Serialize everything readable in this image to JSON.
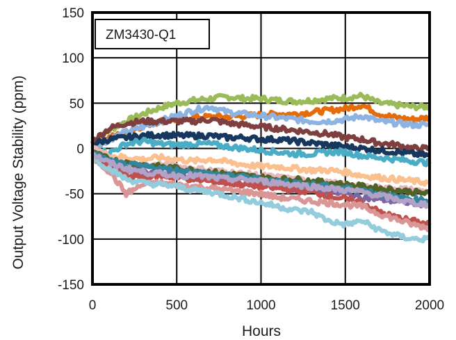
{
  "chart_data": {
    "type": "line",
    "title": "",
    "legend_label": "ZM3430-Q1",
    "legend_placement": "top-left",
    "xlabel": "Hours",
    "ylabel": "Output Voltage Stability (ppm)",
    "xlim": [
      0,
      2000
    ],
    "ylim": [
      -150,
      150
    ],
    "xticks": [
      0,
      500,
      1000,
      1500,
      2000
    ],
    "yticks": [
      -150,
      -100,
      -50,
      0,
      50,
      100,
      150
    ],
    "xtick_labels": [
      "0",
      "500",
      "1000",
      "1500",
      "2000"
    ],
    "ytick_labels": [
      "-150",
      "-100",
      "-50",
      "0",
      "50",
      "100",
      "150"
    ],
    "grid": true,
    "x": [
      0,
      100,
      200,
      300,
      400,
      500,
      600,
      700,
      800,
      900,
      1000,
      1100,
      1200,
      1300,
      1400,
      1500,
      1600,
      1700,
      1800,
      1900,
      2000
    ],
    "series": [
      {
        "color": "#9bbb59",
        "values": [
          5,
          20,
          30,
          38,
          45,
          50,
          53,
          55,
          57,
          55,
          55,
          53,
          52,
          53,
          55,
          56,
          58,
          50,
          48,
          46,
          46
        ]
      },
      {
        "color": "#e46c0a",
        "values": [
          0,
          12,
          18,
          25,
          30,
          32,
          34,
          35,
          35,
          36,
          37,
          38,
          38,
          40,
          42,
          44,
          48,
          38,
          34,
          32,
          34
        ]
      },
      {
        "color": "#8db3e2",
        "values": [
          0,
          10,
          18,
          24,
          30,
          36,
          42,
          46,
          40,
          38,
          36,
          34,
          32,
          30,
          30,
          32,
          36,
          30,
          28,
          26,
          26
        ]
      },
      {
        "color": "#7f3f3f",
        "values": [
          8,
          22,
          28,
          30,
          30,
          30,
          30,
          32,
          28,
          26,
          24,
          22,
          20,
          18,
          16,
          12,
          10,
          6,
          4,
          0,
          0
        ]
      },
      {
        "color": "#17375e",
        "values": [
          5,
          10,
          12,
          14,
          15,
          14,
          14,
          14,
          12,
          12,
          10,
          10,
          8,
          6,
          4,
          2,
          0,
          -2,
          -4,
          -6,
          -8
        ]
      },
      {
        "color": "#4bacc6",
        "values": [
          0,
          -5,
          5,
          8,
          5,
          4,
          5,
          5,
          2,
          0,
          -2,
          -4,
          -6,
          -6,
          -4,
          -4,
          -8,
          -10,
          -12,
          -14,
          -16
        ]
      },
      {
        "color": "#fac090",
        "values": [
          0,
          -8,
          -10,
          -12,
          -10,
          -12,
          -14,
          -12,
          -15,
          -18,
          -20,
          -20,
          -22,
          -24,
          -24,
          -26,
          -30,
          -32,
          -34,
          -36,
          -38
        ]
      },
      {
        "color": "#e6b9b8",
        "values": [
          0,
          -10,
          -30,
          -20,
          -18,
          -20,
          -22,
          -24,
          -26,
          -28,
          -30,
          -32,
          -34,
          -36,
          -38,
          -40,
          -42,
          -44,
          -44,
          -46,
          -48
        ]
      },
      {
        "color": "#4f6228",
        "values": [
          -5,
          -12,
          -16,
          -18,
          -20,
          -22,
          -24,
          -26,
          -28,
          -30,
          -32,
          -34,
          -34,
          -36,
          -38,
          -40,
          -42,
          -44,
          -46,
          -48,
          -50
        ]
      },
      {
        "color": "#8064a2",
        "values": [
          -5,
          -18,
          -24,
          -26,
          -28,
          -30,
          -32,
          -34,
          -36,
          -38,
          -40,
          -42,
          -44,
          -46,
          -48,
          -50,
          -54,
          -56,
          -58,
          -60,
          -62
        ]
      },
      {
        "color": "#c0504d",
        "values": [
          -8,
          -20,
          -30,
          -32,
          -30,
          -32,
          -34,
          -36,
          -38,
          -40,
          -42,
          -44,
          -46,
          -48,
          -52,
          -56,
          -60,
          -70,
          -76,
          -80,
          -84
        ]
      },
      {
        "color": "#d99694",
        "values": [
          -10,
          -25,
          -50,
          -40,
          -38,
          -40,
          -42,
          -44,
          -46,
          -48,
          -50,
          -54,
          -56,
          -58,
          -60,
          -62,
          -64,
          -72,
          -78,
          -84,
          -88
        ]
      },
      {
        "color": "#93cddd",
        "values": [
          -10,
          -22,
          -34,
          -38,
          -40,
          -42,
          -46,
          -48,
          -52,
          -56,
          -60,
          -64,
          -68,
          -70,
          -80,
          -84,
          -80,
          -90,
          -96,
          -100,
          -100
        ]
      },
      {
        "color": "#31859c",
        "values": [
          -5,
          -14,
          -18,
          -20,
          -22,
          -24,
          -26,
          -28,
          -30,
          -32,
          -34,
          -36,
          -38,
          -40,
          -42,
          -44,
          -46,
          -50,
          -54,
          -56,
          -58
        ]
      },
      {
        "color": "#b3a2c7",
        "values": [
          -6,
          -16,
          -22,
          -26,
          -28,
          -30,
          -30,
          -32,
          -34,
          -34,
          -36,
          -38,
          -40,
          -42,
          -44,
          -46,
          -48,
          -52,
          -56,
          -60,
          -62
        ]
      }
    ]
  }
}
